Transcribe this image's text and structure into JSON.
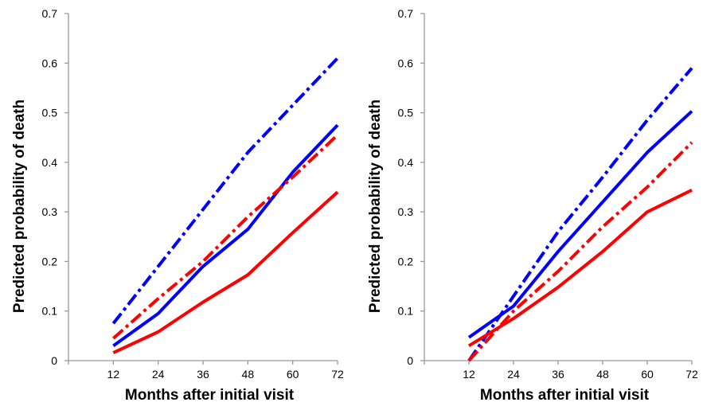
{
  "chart_data": [
    {
      "type": "line",
      "title": "",
      "xlabel": "Months after initial visit",
      "ylabel": "Predicted probability of death",
      "x": [
        12,
        24,
        36,
        48,
        60,
        72
      ],
      "x_tick_labels": [
        "12",
        "24",
        "36",
        "48",
        "60",
        "72"
      ],
      "y_tick_labels": [
        "0",
        "0.1",
        "0.2",
        "0.3",
        "0.4",
        "0.5",
        "0.6",
        "0.7"
      ],
      "ylim": [
        0,
        0.7
      ],
      "xlim": [
        0,
        72
      ],
      "grid": false,
      "legend": "none",
      "series": [
        {
          "values": [
            0.075,
            0.19,
            0.305,
            0.42,
            0.515,
            0.61
          ],
          "color": "#0000ff",
          "style": "dashdot"
        },
        {
          "values": [
            0.03,
            0.095,
            0.19,
            0.265,
            0.38,
            0.475
          ],
          "color": "#0000ff",
          "style": "solid"
        },
        {
          "values": [
            0.045,
            0.125,
            0.2,
            0.29,
            0.37,
            0.455
          ],
          "color": "#ff0000",
          "style": "dashdot"
        },
        {
          "values": [
            0.016,
            0.058,
            0.118,
            0.173,
            0.258,
            0.34
          ],
          "color": "#ff0000",
          "style": "solid"
        }
      ]
    },
    {
      "type": "line",
      "title": "",
      "xlabel": "Months after initial visit",
      "ylabel": "Predicted probability of death",
      "x": [
        12,
        24,
        36,
        48,
        60,
        72
      ],
      "x_tick_labels": [
        "12",
        "24",
        "36",
        "48",
        "60",
        "72"
      ],
      "y_tick_labels": [
        "0",
        "0.1",
        "0.2",
        "0.3",
        "0.4",
        "0.5",
        "0.6",
        "0.7"
      ],
      "ylim": [
        0,
        0.7
      ],
      "xlim": [
        0,
        72
      ],
      "grid": false,
      "legend": "none",
      "series": [
        {
          "values": [
            0.0,
            0.13,
            0.26,
            0.37,
            0.485,
            0.59
          ],
          "color": "#0000ff",
          "style": "dashdot"
        },
        {
          "values": [
            0.047,
            0.11,
            0.22,
            0.32,
            0.42,
            0.503
          ],
          "color": "#0000ff",
          "style": "solid"
        },
        {
          "values": [
            0.0,
            0.1,
            0.18,
            0.27,
            0.35,
            0.44
          ],
          "color": "#ff0000",
          "style": "dashdot"
        },
        {
          "values": [
            0.03,
            0.085,
            0.148,
            0.22,
            0.3,
            0.344
          ],
          "color": "#ff0000",
          "style": "solid"
        }
      ]
    }
  ]
}
